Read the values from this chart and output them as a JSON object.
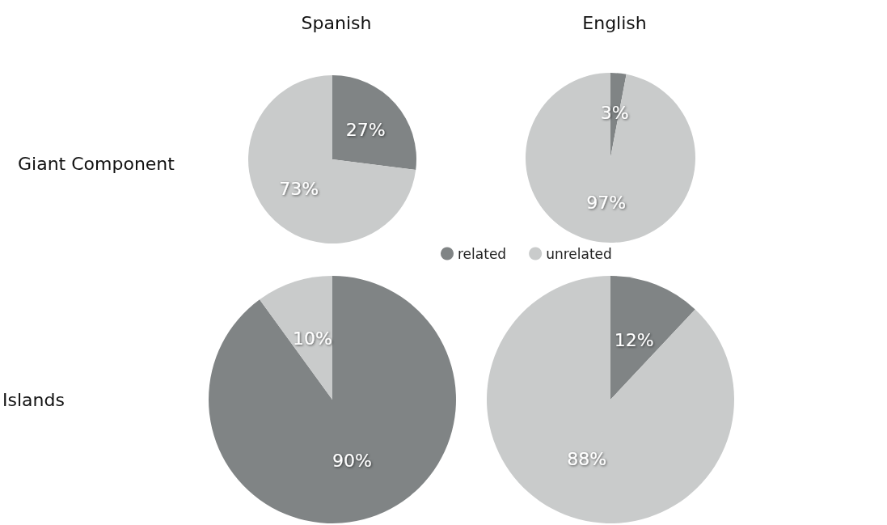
{
  "chart_data": [
    {
      "type": "pie",
      "title": "Spanish",
      "ylabel": "Giant Component",
      "categories": [
        "related",
        "unrelated"
      ],
      "values": [
        27,
        73
      ],
      "colors": [
        "#808485",
        "#c9cbcb"
      ],
      "value_labels": [
        "27%",
        "73%"
      ],
      "legend": "bottom right"
    },
    {
      "type": "pie",
      "title": "English",
      "categories": [
        null,
        null
      ],
      "values": [
        3,
        97
      ],
      "colors": [
        "#808485",
        "#c9cbcb"
      ],
      "value_labels": [
        "3%",
        "97%"
      ]
    },
    {
      "type": "pie",
      "ylabel": "Islands",
      "categories": [
        null,
        null
      ],
      "values": [
        90,
        10
      ],
      "colors": [
        "#808485",
        "#c9cbcb"
      ],
      "value_labels": [
        "90%",
        "10%"
      ]
    },
    {
      "type": "pie",
      "categories": [
        null,
        null
      ],
      "values": [
        12,
        88
      ],
      "colors": [
        "#808485",
        "#c9cbcb"
      ],
      "value_labels": [
        "12%",
        "88%"
      ]
    }
  ]
}
